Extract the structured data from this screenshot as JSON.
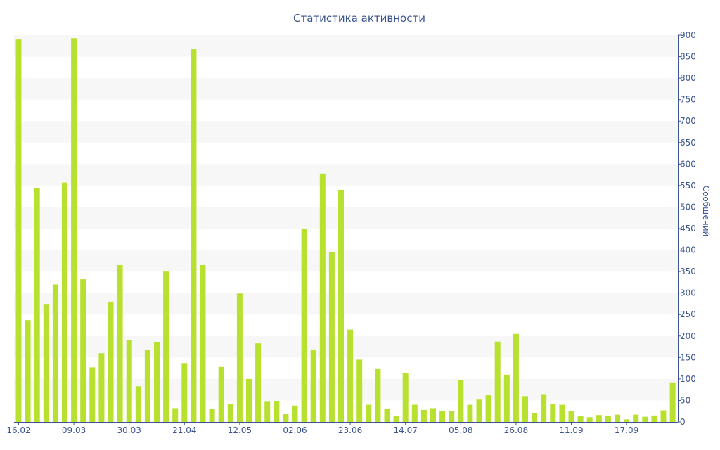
{
  "chart_data": {
    "type": "bar",
    "title": "Статистика активности",
    "ylabel": "Сообщений",
    "xlabel": "",
    "ylim": [
      0,
      900
    ],
    "y_ticks": [
      0,
      50,
      100,
      150,
      200,
      250,
      300,
      350,
      400,
      450,
      500,
      550,
      600,
      650,
      700,
      750,
      800,
      850,
      900
    ],
    "y_axis_side": "right",
    "grid": "horizontal bands",
    "x_tick_labels": [
      {
        "label": "16.02",
        "index": 0
      },
      {
        "label": "09.03",
        "index": 6
      },
      {
        "label": "30.03",
        "index": 12
      },
      {
        "label": "21.04",
        "index": 18
      },
      {
        "label": "12.05",
        "index": 24
      },
      {
        "label": "02.06",
        "index": 30
      },
      {
        "label": "23.06",
        "index": 36
      },
      {
        "label": "14.07",
        "index": 42
      },
      {
        "label": "05.08",
        "index": 48
      },
      {
        "label": "26.08",
        "index": 54
      },
      {
        "label": "11.09",
        "index": 60
      },
      {
        "label": "17.09",
        "index": 66
      }
    ],
    "values": [
      890,
      237,
      545,
      273,
      320,
      557,
      893,
      332,
      127,
      160,
      280,
      365,
      190,
      83,
      167,
      185,
      350,
      32,
      137,
      868,
      365,
      30,
      128,
      42,
      299,
      100,
      183,
      47,
      48,
      18,
      38,
      450,
      167,
      578,
      395,
      540,
      215,
      145,
      40,
      123,
      30,
      13,
      113,
      40,
      28,
      32,
      25,
      25,
      98,
      40,
      52,
      62,
      187,
      110,
      205,
      60,
      20,
      63,
      42,
      40,
      25,
      13,
      11,
      16,
      14,
      17,
      6,
      17,
      12,
      15,
      27,
      92
    ],
    "colors": {
      "bar": "#b8e02e",
      "band": "#f7f7f7",
      "text": "#3c5590",
      "axis": "#3c5590"
    }
  }
}
